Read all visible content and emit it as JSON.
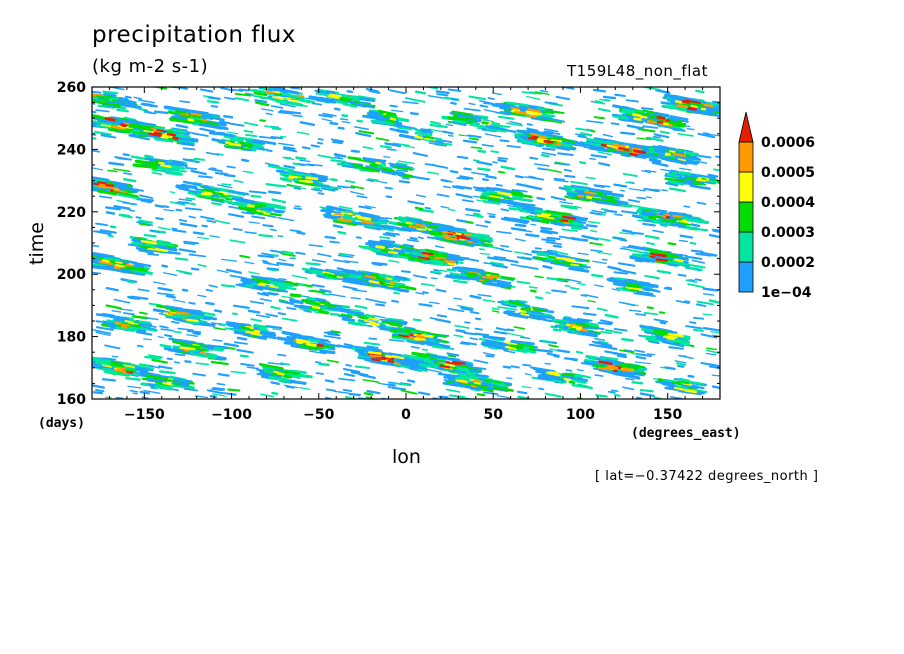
{
  "chart_data": {
    "type": "heatmap",
    "title": "precipitation flux",
    "subtitle": "(kg m-2 s-1)",
    "run_label": "T159L48_non_flat",
    "xlabel": "lon",
    "ylabel": "time",
    "x_units": "(degrees_east)",
    "y_units": "(days)",
    "xlim": [
      -180,
      180
    ],
    "ylim": [
      160,
      260
    ],
    "x_ticks": [
      -150,
      -100,
      -50,
      0,
      50,
      100,
      150
    ],
    "x_tick_labels": [
      "−150",
      "−100",
      "−50",
      "0",
      "50",
      "100",
      "150"
    ],
    "y_ticks": [
      160,
      180,
      200,
      220,
      240,
      260
    ],
    "y_tick_labels": [
      "160",
      "180",
      "200",
      "220",
      "240",
      "260"
    ],
    "grid": false,
    "note": "[ lat=−0.37422 degrees_north ]",
    "colorbar": {
      "levels": [
        0.0001,
        0.0002,
        0.0003,
        0.0004,
        0.0005,
        0.0006
      ],
      "labels": [
        "1e−04",
        "0.0002",
        "0.0003",
        "0.0004",
        "0.0005",
        "0.0006"
      ],
      "colors": [
        "#1ea0ff",
        "#00e6a0",
        "#00dc00",
        "#ffff00",
        "#ff9b00",
        "#e61e00"
      ],
      "extend": "max",
      "placement": "right"
    },
    "streaks": [
      [
        -175,
        256,
        22,
        3,
        2
      ],
      [
        -165,
        248,
        18,
        4,
        3
      ],
      [
        -140,
        245,
        20,
        5,
        4
      ],
      [
        -120,
        250,
        15,
        3,
        2
      ],
      [
        -95,
        242,
        18,
        2,
        1
      ],
      [
        -70,
        257,
        22,
        2,
        2
      ],
      [
        -35,
        256,
        18,
        2,
        1
      ],
      [
        -20,
        235,
        25,
        2,
        1
      ],
      [
        -10,
        250,
        12,
        2,
        1
      ],
      [
        10,
        244,
        15,
        1,
        1
      ],
      [
        40,
        249,
        18,
        2,
        1
      ],
      [
        70,
        252,
        20,
        3,
        2
      ],
      [
        80,
        243,
        15,
        5,
        4
      ],
      [
        125,
        240,
        25,
        5,
        4
      ],
      [
        140,
        250,
        22,
        4,
        3
      ],
      [
        165,
        254,
        18,
        5,
        4
      ],
      [
        155,
        238,
        12,
        3,
        2
      ],
      [
        -170,
        228,
        18,
        4,
        4
      ],
      [
        -140,
        235,
        12,
        2,
        1
      ],
      [
        -110,
        226,
        20,
        2,
        1
      ],
      [
        -60,
        231,
        15,
        2,
        1
      ],
      [
        -85,
        221,
        12,
        2,
        1
      ],
      [
        -30,
        218,
        22,
        3,
        2
      ],
      [
        10,
        215,
        20,
        4,
        3
      ],
      [
        30,
        212,
        18,
        5,
        4
      ],
      [
        55,
        225,
        15,
        2,
        1
      ],
      [
        85,
        218,
        20,
        4,
        3
      ],
      [
        110,
        225,
        18,
        3,
        2
      ],
      [
        150,
        218,
        22,
        4,
        3
      ],
      [
        165,
        230,
        15,
        2,
        1
      ],
      [
        -165,
        203,
        18,
        3,
        2
      ],
      [
        -145,
        209,
        12,
        2,
        1
      ],
      [
        -80,
        197,
        15,
        2,
        1
      ],
      [
        -40,
        200,
        18,
        2,
        1
      ],
      [
        -10,
        208,
        12,
        2,
        1
      ],
      [
        -15,
        198,
        20,
        4,
        3
      ],
      [
        20,
        205,
        22,
        4,
        3
      ],
      [
        45,
        199,
        18,
        3,
        2
      ],
      [
        90,
        204,
        15,
        2,
        1
      ],
      [
        150,
        205,
        20,
        3,
        4
      ],
      [
        130,
        196,
        12,
        2,
        1
      ],
      [
        -160,
        184,
        15,
        3,
        2
      ],
      [
        -130,
        187,
        18,
        3,
        2
      ],
      [
        -120,
        176,
        15,
        3,
        2
      ],
      [
        -90,
        182,
        12,
        2,
        1
      ],
      [
        -55,
        178,
        15,
        3,
        3
      ],
      [
        -20,
        185,
        20,
        2,
        1
      ],
      [
        -10,
        173,
        22,
        5,
        4
      ],
      [
        5,
        180,
        18,
        4,
        3
      ],
      [
        25,
        171,
        20,
        4,
        4
      ],
      [
        60,
        177,
        15,
        2,
        1
      ],
      [
        100,
        183,
        12,
        3,
        2
      ],
      [
        120,
        170,
        18,
        4,
        3
      ],
      [
        150,
        180,
        15,
        2,
        1
      ],
      [
        -165,
        170,
        18,
        4,
        3
      ],
      [
        -135,
        165,
        15,
        2,
        1
      ],
      [
        -70,
        168,
        12,
        2,
        1
      ],
      [
        40,
        165,
        20,
        3,
        2
      ],
      [
        90,
        167,
        15,
        2,
        1
      ],
      [
        160,
        164,
        12,
        2,
        1
      ],
      [
        -50,
        190,
        18,
        2,
        1
      ],
      [
        70,
        188,
        15,
        2,
        1
      ]
    ]
  }
}
